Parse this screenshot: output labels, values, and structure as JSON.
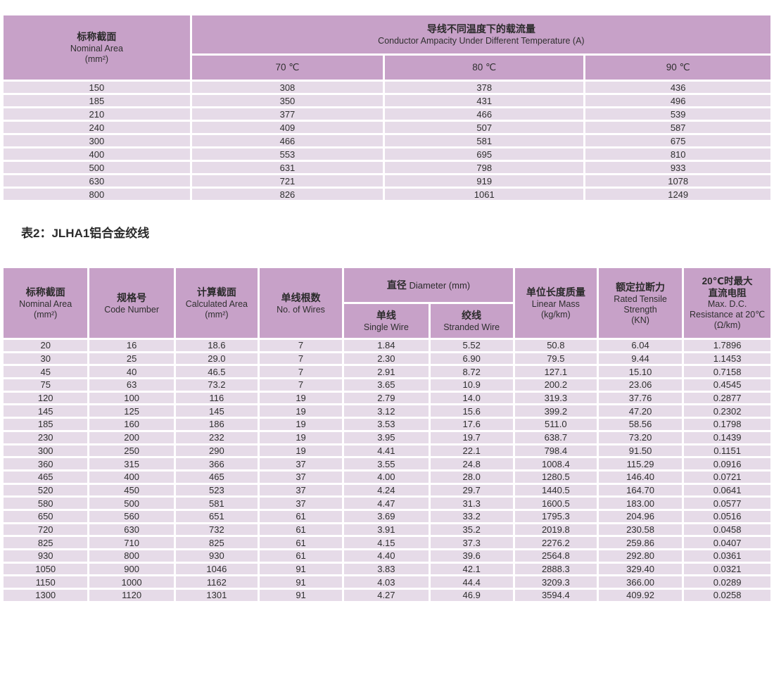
{
  "captions": {
    "table2": "表2：JLHA1铝合金绞线"
  },
  "colors": {
    "header_bg": "#c7a1c8",
    "row_bg": "#e6dbe8",
    "page_bg": "#ffffff",
    "text": "#2f2f2f"
  },
  "table1": {
    "col1": {
      "zh": "标称截面",
      "en": "Nominal Area",
      "unit": "(mm²)"
    },
    "group": {
      "zh": "导线不同温度下的载流量",
      "en": "Conductor Ampacity Under Different Temperature (A)"
    },
    "temps": [
      "70 ℃",
      "80 ℃",
      "90 ℃"
    ],
    "rows": [
      [
        "150",
        "308",
        "378",
        "436"
      ],
      [
        "185",
        "350",
        "431",
        "496"
      ],
      [
        "210",
        "377",
        "466",
        "539"
      ],
      [
        "240",
        "409",
        "507",
        "587"
      ],
      [
        "300",
        "466",
        "581",
        "675"
      ],
      [
        "400",
        "553",
        "695",
        "810"
      ],
      [
        "500",
        "631",
        "798",
        "933"
      ],
      [
        "630",
        "721",
        "919",
        "1078"
      ],
      [
        "800",
        "826",
        "1061",
        "1249"
      ]
    ]
  },
  "table2": {
    "headers": {
      "nominal_area": {
        "zh": "标称截面",
        "en": "Nominal Area",
        "unit": "(mm²)"
      },
      "code_number": {
        "zh": "规格号",
        "en": "Code Number"
      },
      "calculated_area": {
        "zh": "计算截面",
        "en": "Calculated Area",
        "unit": "(mm²)"
      },
      "no_of_wires": {
        "zh": "单线根数",
        "en": "No. of Wires"
      },
      "diameter_group": {
        "zh": "直径",
        "en": "Diameter (mm)"
      },
      "single_wire": {
        "zh": "单线",
        "en": "Single Wire"
      },
      "stranded_wire": {
        "zh": "绞线",
        "en": "Stranded Wire"
      },
      "linear_mass": {
        "zh": "单位长度质量",
        "en": "Linear Mass",
        "unit": "(kg/km)"
      },
      "tensile": {
        "zh": "额定拉断力",
        "en": "Rated Tensile",
        "en2": "Strength",
        "unit": "(KN)"
      },
      "resistance": {
        "zh1": "20℃时最大",
        "zh2": "直流电阻",
        "en1": "Max. D.C.",
        "en2": "Resistance at 20℃",
        "unit": "(Ω/km)"
      }
    },
    "rows": [
      [
        "20",
        "16",
        "18.6",
        "7",
        "1.84",
        "5.52",
        "50.8",
        "6.04",
        "1.7896"
      ],
      [
        "30",
        "25",
        "29.0",
        "7",
        "2.30",
        "6.90",
        "79.5",
        "9.44",
        "1.1453"
      ],
      [
        "45",
        "40",
        "46.5",
        "7",
        "2.91",
        "8.72",
        "127.1",
        "15.10",
        "0.7158"
      ],
      [
        "75",
        "63",
        "73.2",
        "7",
        "3.65",
        "10.9",
        "200.2",
        "23.06",
        "0.4545"
      ],
      [
        "120",
        "100",
        "116",
        "19",
        "2.79",
        "14.0",
        "319.3",
        "37.76",
        "0.2877"
      ],
      [
        "145",
        "125",
        "145",
        "19",
        "3.12",
        "15.6",
        "399.2",
        "47.20",
        "0.2302"
      ],
      [
        "185",
        "160",
        "186",
        "19",
        "3.53",
        "17.6",
        "511.0",
        "58.56",
        "0.1798"
      ],
      [
        "230",
        "200",
        "232",
        "19",
        "3.95",
        "19.7",
        "638.7",
        "73.20",
        "0.1439"
      ],
      [
        "300",
        "250",
        "290",
        "19",
        "4.41",
        "22.1",
        "798.4",
        "91.50",
        "0.1151"
      ],
      [
        "360",
        "315",
        "366",
        "37",
        "3.55",
        "24.8",
        "1008.4",
        "115.29",
        "0.0916"
      ],
      [
        "465",
        "400",
        "465",
        "37",
        "4.00",
        "28.0",
        "1280.5",
        "146.40",
        "0.0721"
      ],
      [
        "520",
        "450",
        "523",
        "37",
        "4.24",
        "29.7",
        "1440.5",
        "164.70",
        "0.0641"
      ],
      [
        "580",
        "500",
        "581",
        "37",
        "4.47",
        "31.3",
        "1600.5",
        "183.00",
        "0.0577"
      ],
      [
        "650",
        "560",
        "651",
        "61",
        "3.69",
        "33.2",
        "1795.3",
        "204.96",
        "0.0516"
      ],
      [
        "720",
        "630",
        "732",
        "61",
        "3.91",
        "35.2",
        "2019.8",
        "230.58",
        "0.0458"
      ],
      [
        "825",
        "710",
        "825",
        "61",
        "4.15",
        "37.3",
        "2276.2",
        "259.86",
        "0.0407"
      ],
      [
        "930",
        "800",
        "930",
        "61",
        "4.40",
        "39.6",
        "2564.8",
        "292.80",
        "0.0361"
      ],
      [
        "1050",
        "900",
        "1046",
        "91",
        "3.83",
        "42.1",
        "2888.3",
        "329.40",
        "0.0321"
      ],
      [
        "1150",
        "1000",
        "1162",
        "91",
        "4.03",
        "44.4",
        "3209.3",
        "366.00",
        "0.0289"
      ],
      [
        "1300",
        "1120",
        "1301",
        "91",
        "4.27",
        "46.9",
        "3594.4",
        "409.92",
        "0.0258"
      ]
    ]
  }
}
